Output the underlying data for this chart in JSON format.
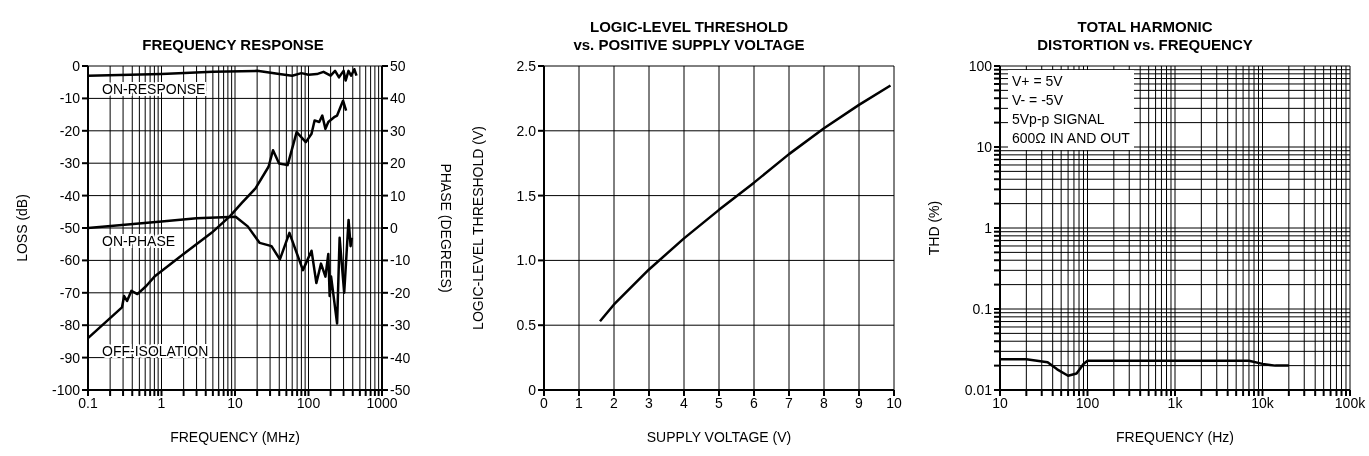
{
  "chart_data": [
    {
      "type": "line",
      "title": "FREQUENCY RESPONSE",
      "xlabel": "FREQUENCY (MHz)",
      "ylabel": "LOSS (dB)",
      "y2label": "PHASE (DEGREES)",
      "log": "x",
      "grid": true,
      "marker": "none",
      "line_style": "solid",
      "xlim": [
        0.1,
        1000
      ],
      "xticks": [
        0.1,
        {
          "value": 0.2,
          "label": null
        },
        {
          "value": 0.3,
          "label": null
        },
        {
          "value": 0.4,
          "label": null
        },
        {
          "value": 0.5,
          "label": null
        },
        {
          "value": 0.6,
          "label": null
        },
        {
          "value": 0.7,
          "label": null
        },
        {
          "value": 0.8,
          "label": null
        },
        {
          "value": 0.9,
          "label": null
        },
        1,
        {
          "value": 2,
          "label": null
        },
        {
          "value": 3,
          "label": null
        },
        {
          "value": 4,
          "label": null
        },
        {
          "value": 5,
          "label": null
        },
        {
          "value": 6,
          "label": null
        },
        {
          "value": 7,
          "label": null
        },
        {
          "value": 8,
          "label": null
        },
        {
          "value": 9,
          "label": null
        },
        10,
        {
          "value": 20,
          "label": null
        },
        {
          "value": 30,
          "label": null
        },
        {
          "value": 40,
          "label": null
        },
        {
          "value": 50,
          "label": null
        },
        {
          "value": 60,
          "label": null
        },
        {
          "value": 70,
          "label": null
        },
        {
          "value": 80,
          "label": null
        },
        {
          "value": 90,
          "label": null
        },
        100,
        {
          "value": 200,
          "label": null
        },
        {
          "value": 300,
          "label": null
        },
        {
          "value": 400,
          "label": null
        },
        {
          "value": 500,
          "label": null
        },
        {
          "value": 600,
          "label": null
        },
        {
          "value": 700,
          "label": null
        },
        {
          "value": 800,
          "label": null
        },
        {
          "value": 900,
          "label": null
        },
        1000
      ],
      "ylim": [
        -100,
        0
      ],
      "yticks": [
        -100,
        -90,
        -80,
        -70,
        -60,
        -50,
        -40,
        -30,
        -20,
        -10,
        0
      ],
      "y2lim": [
        -50,
        50
      ],
      "y2ticks": [
        -50,
        -40,
        -30,
        -20,
        -10,
        0,
        10,
        20,
        30,
        40,
        50
      ],
      "series": [
        {
          "name": "ON-RESPONSE",
          "color": "#000000",
          "x": [
            0.1,
            1,
            5,
            20,
            40,
            60,
            80,
            100,
            130,
            160,
            200,
            230,
            260,
            300,
            320,
            350,
            380,
            420,
            450
          ],
          "values": [
            -3,
            -2.5,
            -1.8,
            -1.5,
            -2.5,
            -3,
            -2.2,
            -2.7,
            -2.5,
            -1.8,
            -3,
            -1.5,
            -3.5,
            -1.5,
            -4.5,
            -1.5,
            -3,
            -1,
            -3
          ]
        },
        {
          "name": "ON-PHASE",
          "color": "#000000",
          "axis": "y2",
          "x": [
            0.1,
            1,
            3,
            10.2,
            14.9,
            21.7,
            31.4,
            40.8,
            55,
            84,
            110,
            128,
            148,
            170,
            186,
            194,
            203,
            245,
            265,
            306,
            351,
            374,
            389
          ],
          "values": [
            0,
            2,
            3,
            3.5,
            0.5,
            -4.6,
            -5.6,
            -9.7,
            -1.5,
            -13,
            -7,
            -17,
            -11,
            -15,
            -8,
            -21,
            -15,
            -29.5,
            -3,
            -20,
            2.5,
            -5.6,
            -3
          ]
        },
        {
          "name": "OFF-ISOLATION",
          "color": "#000000",
          "x": [
            0.1,
            0.29,
            0.31,
            0.34,
            0.39,
            0.47,
            0.62,
            0.82,
            2.08,
            4.8,
            8.5,
            12.3,
            19,
            28.6,
            32.9,
            39.8,
            52,
            69,
            92,
            110,
            121,
            140,
            154,
            170,
            186,
            223,
            245,
            295,
            325
          ],
          "values": [
            -84,
            -74.5,
            -71,
            -72.5,
            -69.4,
            -70.4,
            -67.9,
            -64.8,
            -57.7,
            -51.5,
            -46.4,
            -42.3,
            -37.8,
            -31.1,
            -26,
            -30.1,
            -30.6,
            -20.4,
            -23.5,
            -20.9,
            -16.8,
            -17.3,
            -15.3,
            -19.4,
            -17.3,
            -15.8,
            -15.3,
            -10.7,
            -13.8
          ]
        }
      ]
    },
    {
      "type": "line",
      "title": "LOGIC-LEVEL THRESHOLD\nvs. POSITIVE SUPPLY VOLTAGE",
      "xlabel": "SUPPLY VOLTAGE (V)",
      "ylabel": "LOGIC-LEVEL THRESHOLD (V)",
      "grid": true,
      "marker": "none",
      "line_style": "solid",
      "xlim": [
        0,
        10
      ],
      "xticks": [
        0,
        1,
        2,
        3,
        4,
        5,
        6,
        7,
        8,
        9,
        10
      ],
      "ylim": [
        0,
        2.5
      ],
      "yticks": [
        0,
        0.5,
        {
          "value": 1,
          "label": "1.0"
        },
        1.5,
        {
          "value": 2,
          "label": "2.0"
        },
        2.5
      ],
      "series": [
        {
          "color": "#000000",
          "x": [
            1.6,
            2,
            3,
            4,
            5,
            6,
            7,
            8,
            9,
            9.9
          ],
          "values": [
            0.53,
            0.66,
            0.93,
            1.17,
            1.39,
            1.6,
            1.82,
            2.02,
            2.2,
            2.35
          ]
        }
      ]
    },
    {
      "type": "line",
      "title": "TOTAL HARMONIC\nDISTORTION  vs. FREQUENCY",
      "xlabel": "FREQUENCY (Hz)",
      "ylabel": "THD (%)",
      "log": "xy",
      "grid": true,
      "marker": "none",
      "line_style": "solid",
      "annotations": [
        "V+ = 5V",
        "V- = -5V",
        "5Vp-p SIGNAL",
        "600Ω  IN AND OUT"
      ],
      "xlim": [
        10,
        100000
      ],
      "xticks": [
        10,
        {
          "value": 20,
          "label": null
        },
        {
          "value": 30,
          "label": null
        },
        {
          "value": 40,
          "label": null
        },
        {
          "value": 50,
          "label": null
        },
        {
          "value": 60,
          "label": null
        },
        {
          "value": 70,
          "label": null
        },
        {
          "value": 80,
          "label": null
        },
        {
          "value": 90,
          "label": null
        },
        100,
        {
          "value": 200,
          "label": null
        },
        {
          "value": 300,
          "label": null
        },
        {
          "value": 400,
          "label": null
        },
        {
          "value": 500,
          "label": null
        },
        {
          "value": 600,
          "label": null
        },
        {
          "value": 700,
          "label": null
        },
        {
          "value": 800,
          "label": null
        },
        {
          "value": 900,
          "label": null
        },
        {
          "value": 1000,
          "label": "1k"
        },
        {
          "value": 2000,
          "label": null
        },
        {
          "value": 3000,
          "label": null
        },
        {
          "value": 4000,
          "label": null
        },
        {
          "value": 5000,
          "label": null
        },
        {
          "value": 6000,
          "label": null
        },
        {
          "value": 7000,
          "label": null
        },
        {
          "value": 8000,
          "label": null
        },
        {
          "value": 9000,
          "label": null
        },
        {
          "value": 10000,
          "label": "10k"
        },
        {
          "value": 20000,
          "label": null
        },
        {
          "value": 30000,
          "label": null
        },
        {
          "value": 40000,
          "label": null
        },
        {
          "value": 50000,
          "label": null
        },
        {
          "value": 60000,
          "label": null
        },
        {
          "value": 70000,
          "label": null
        },
        {
          "value": 80000,
          "label": null
        },
        {
          "value": 90000,
          "label": null
        },
        {
          "value": 100000,
          "label": "100k"
        }
      ],
      "ylim": [
        0.01,
        100
      ],
      "yticks": [
        0.01,
        {
          "value": 0.02,
          "label": null
        },
        {
          "value": 0.03,
          "label": null
        },
        {
          "value": 0.04,
          "label": null
        },
        {
          "value": 0.05,
          "label": null
        },
        {
          "value": 0.06,
          "label": null
        },
        {
          "value": 0.07,
          "label": null
        },
        {
          "value": 0.08,
          "label": null
        },
        {
          "value": 0.09,
          "label": null
        },
        0.1,
        {
          "value": 0.2,
          "label": null
        },
        {
          "value": 0.3,
          "label": null
        },
        {
          "value": 0.4,
          "label": null
        },
        {
          "value": 0.5,
          "label": null
        },
        {
          "value": 0.6,
          "label": null
        },
        {
          "value": 0.7,
          "label": null
        },
        {
          "value": 0.8,
          "label": null
        },
        {
          "value": 0.9,
          "label": null
        },
        1,
        {
          "value": 2,
          "label": null
        },
        {
          "value": 3,
          "label": null
        },
        {
          "value": 4,
          "label": null
        },
        {
          "value": 5,
          "label": null
        },
        {
          "value": 6,
          "label": null
        },
        {
          "value": 7,
          "label": null
        },
        {
          "value": 8,
          "label": null
        },
        {
          "value": 9,
          "label": null
        },
        10,
        {
          "value": 20,
          "label": null
        },
        {
          "value": 30,
          "label": null
        },
        {
          "value": 40,
          "label": null
        },
        {
          "value": 50,
          "label": null
        },
        {
          "value": 60,
          "label": null
        },
        {
          "value": 70,
          "label": null
        },
        {
          "value": 80,
          "label": null
        },
        {
          "value": 90,
          "label": null
        },
        100
      ],
      "series": [
        {
          "color": "#000000",
          "x": [
            10,
            20,
            35,
            45,
            60,
            75,
            90,
            100,
            1000,
            7000,
            10000,
            14000,
            20000
          ],
          "values": [
            0.024,
            0.024,
            0.022,
            0.018,
            0.015,
            0.016,
            0.021,
            0.023,
            0.023,
            0.023,
            0.021,
            0.02,
            0.02
          ]
        }
      ]
    }
  ]
}
